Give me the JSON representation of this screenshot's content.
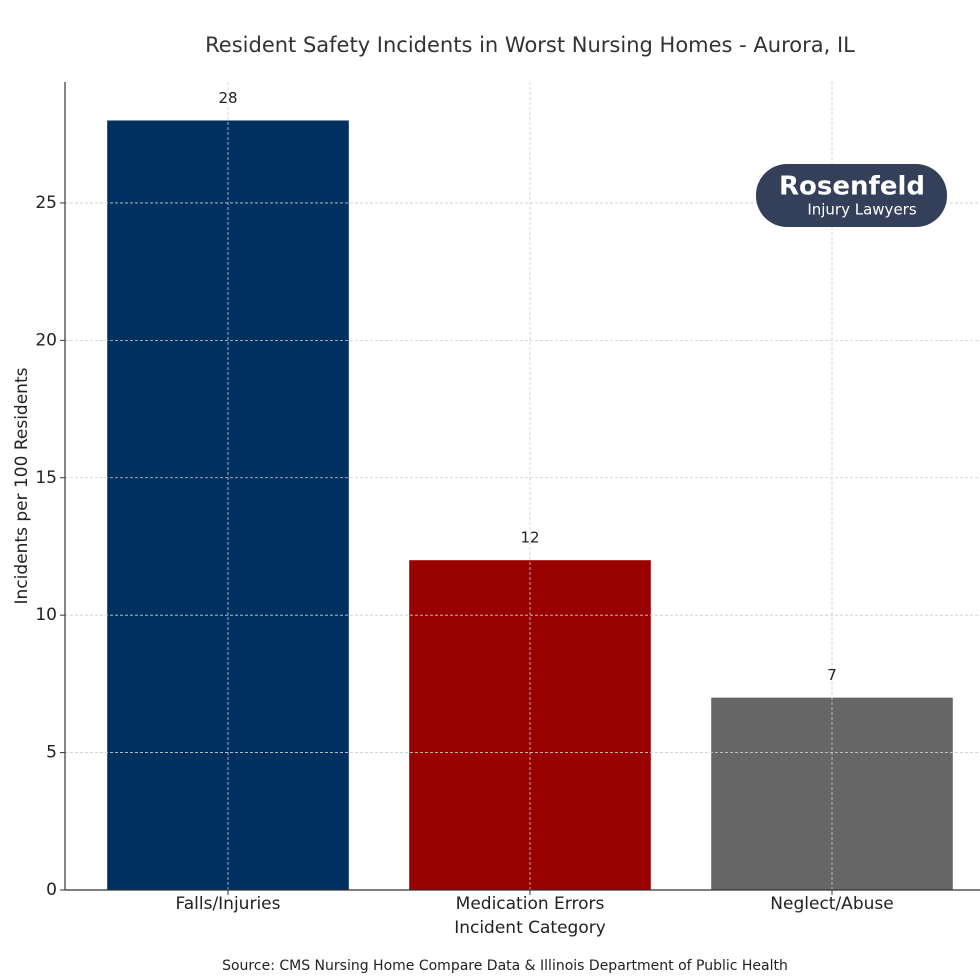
{
  "chart_data": {
    "type": "bar",
    "title": "Resident Safety Incidents in Worst Nursing Homes - Aurora, IL",
    "x_label": "Incident Category",
    "y_label": "Incidents per 100 Residents",
    "categories": [
      "Falls/Injuries",
      "Medication Errors",
      "Neglect/Abuse"
    ],
    "values": [
      28,
      12,
      7
    ],
    "colors": [
      "#003060",
      "#990000",
      "#666666"
    ],
    "ylim": [
      0,
      29.4
    ],
    "yticks": [
      0,
      5,
      10,
      15,
      20,
      25
    ],
    "grid": true,
    "logo": {
      "name": "Rosenfeld",
      "tagline": "Injury Lawyers"
    },
    "source": "Source: CMS Nursing Home Compare Data & Illinois Department of Public Health"
  }
}
